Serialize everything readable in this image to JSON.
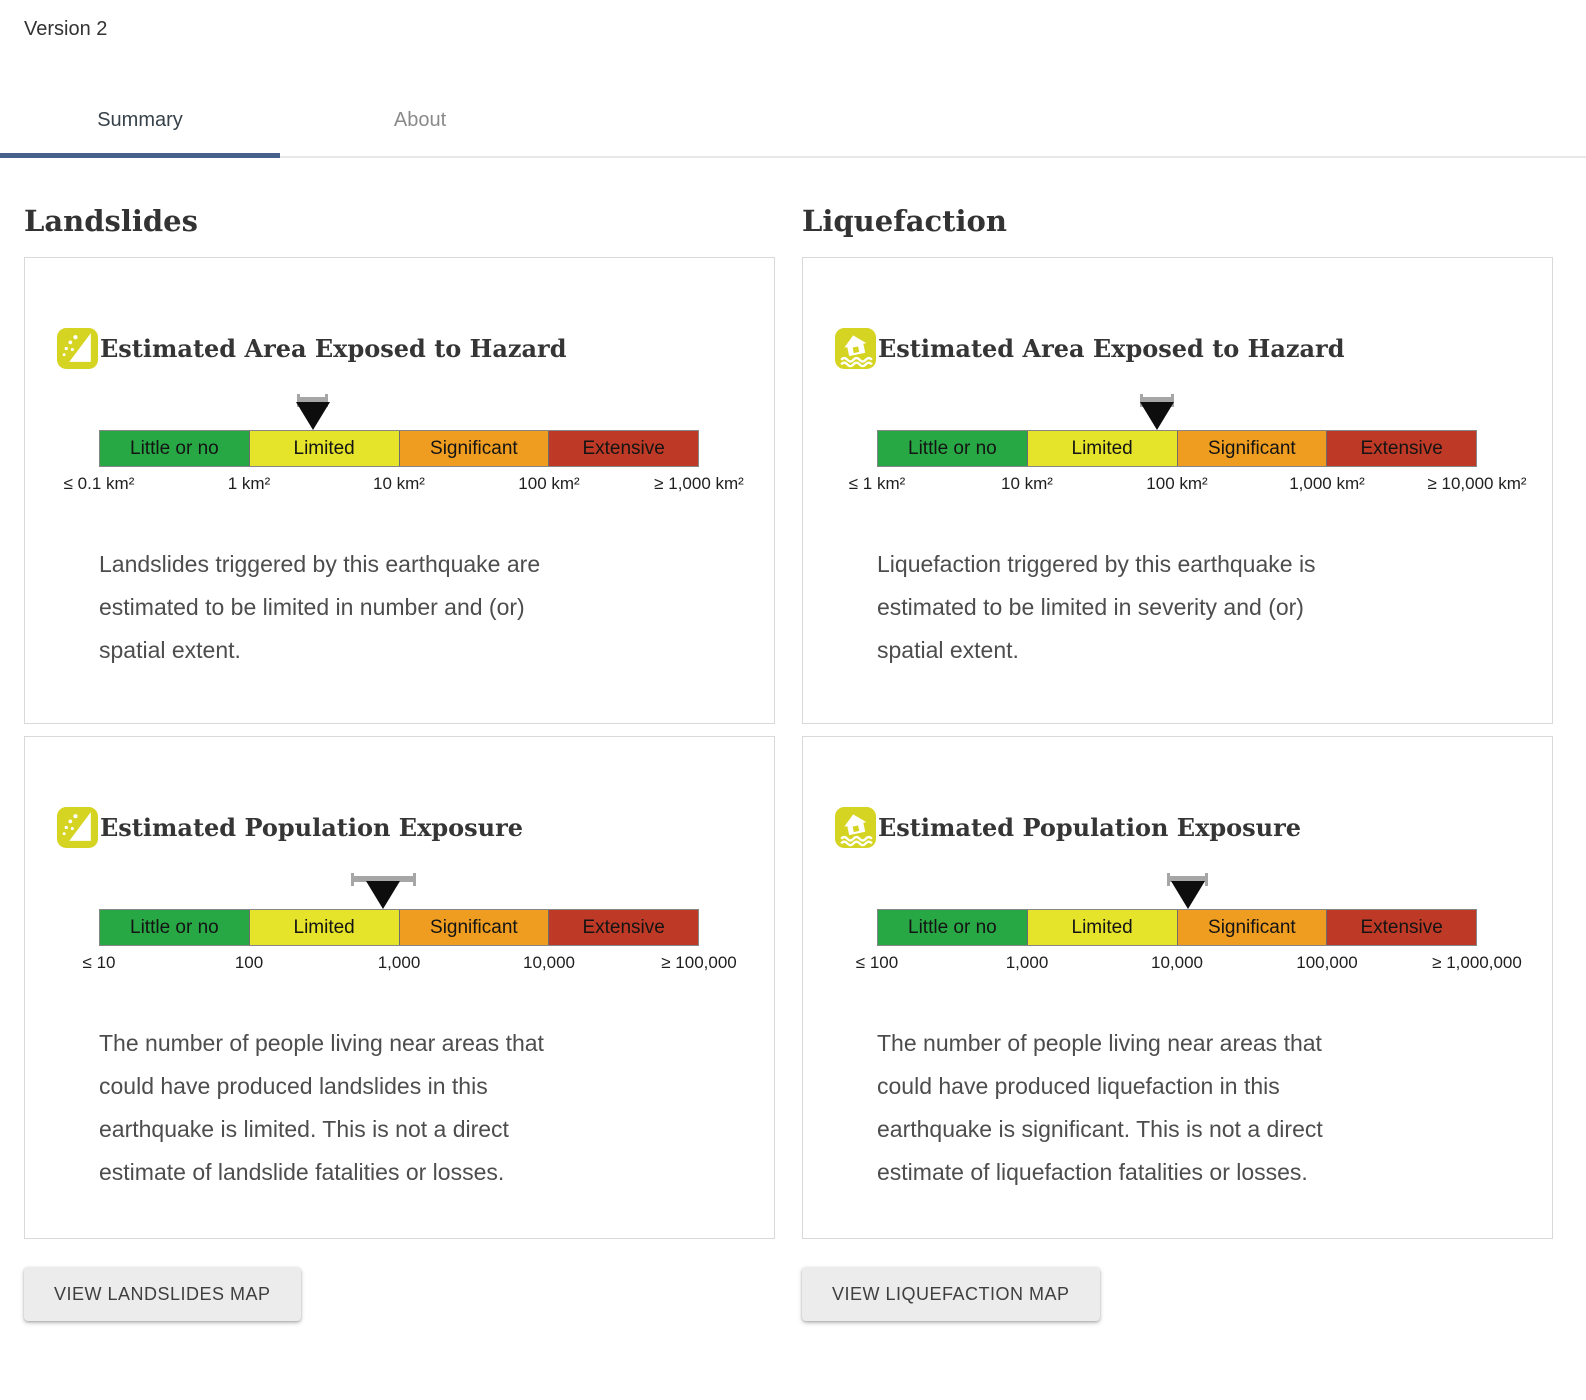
{
  "version_label": "Version 2",
  "tabs": {
    "summary": "Summary",
    "about": "About"
  },
  "palette": {
    "green": "#28a844",
    "yellow": "#e5e32a",
    "orange": "#ef9d20",
    "red": "#bf3a26",
    "accent": "#45618c",
    "icon_yellow": "#d6d422",
    "marker_gray": "#a6a6a6"
  },
  "scale": {
    "labels": [
      "Little or no",
      "Limited",
      "Significant",
      "Extensive"
    ],
    "colors": [
      "#28a844",
      "#e5e32a",
      "#ef9d20",
      "#bf3a26"
    ]
  },
  "columns": [
    {
      "title": "Landslides",
      "icon": "landslide-icon",
      "button_label": "VIEW LANDSLIDES MAP",
      "cards": [
        {
          "title": "Estimated Area Exposed to Hazard",
          "ticks": [
            "≤ 0.1 km²",
            "1 km²",
            "10 km²",
            "100 km²",
            "≥ 1,000 km²"
          ],
          "marker": {
            "pct": 35.6,
            "half_pct": 2.6
          },
          "description": "Landslides triggered by this earthquake are\nestimated to be limited in number and (or)\nspatial extent."
        },
        {
          "title": "Estimated Population Exposure",
          "ticks": [
            "≤ 10",
            "100",
            "1,000",
            "10,000",
            "≥ 100,000"
          ],
          "marker": {
            "pct": 47.4,
            "half_pct": 5.4
          },
          "description": "The number of people living near areas that\ncould have produced landslides in this\nearthquake is limited. This is not a direct\nestimate of landslide fatalities or losses."
        }
      ]
    },
    {
      "title": "Liquefaction",
      "icon": "liquefaction-icon",
      "button_label": "VIEW LIQUEFACTION MAP",
      "cards": [
        {
          "title": "Estimated Area Exposed to Hazard",
          "ticks": [
            "≤ 1 km²",
            "10 km²",
            "100 km²",
            "1,000 km²",
            "≥ 10,000 km²"
          ],
          "marker": {
            "pct": 46.7,
            "half_pct": 2.8
          },
          "description": "Liquefaction triggered by this earthquake is\nestimated to be limited in severity and (or)\nspatial extent."
        },
        {
          "title": "Estimated Population Exposure",
          "ticks": [
            "≤ 100",
            "1,000",
            "10,000",
            "100,000",
            "≥ 1,000,000"
          ],
          "marker": {
            "pct": 51.8,
            "half_pct": 3.4
          },
          "description": "The number of people living near areas that\ncould have produced liquefaction in this\nearthquake is significant. This is not a direct\nestimate of liquefaction fatalities or losses."
        }
      ]
    }
  ]
}
